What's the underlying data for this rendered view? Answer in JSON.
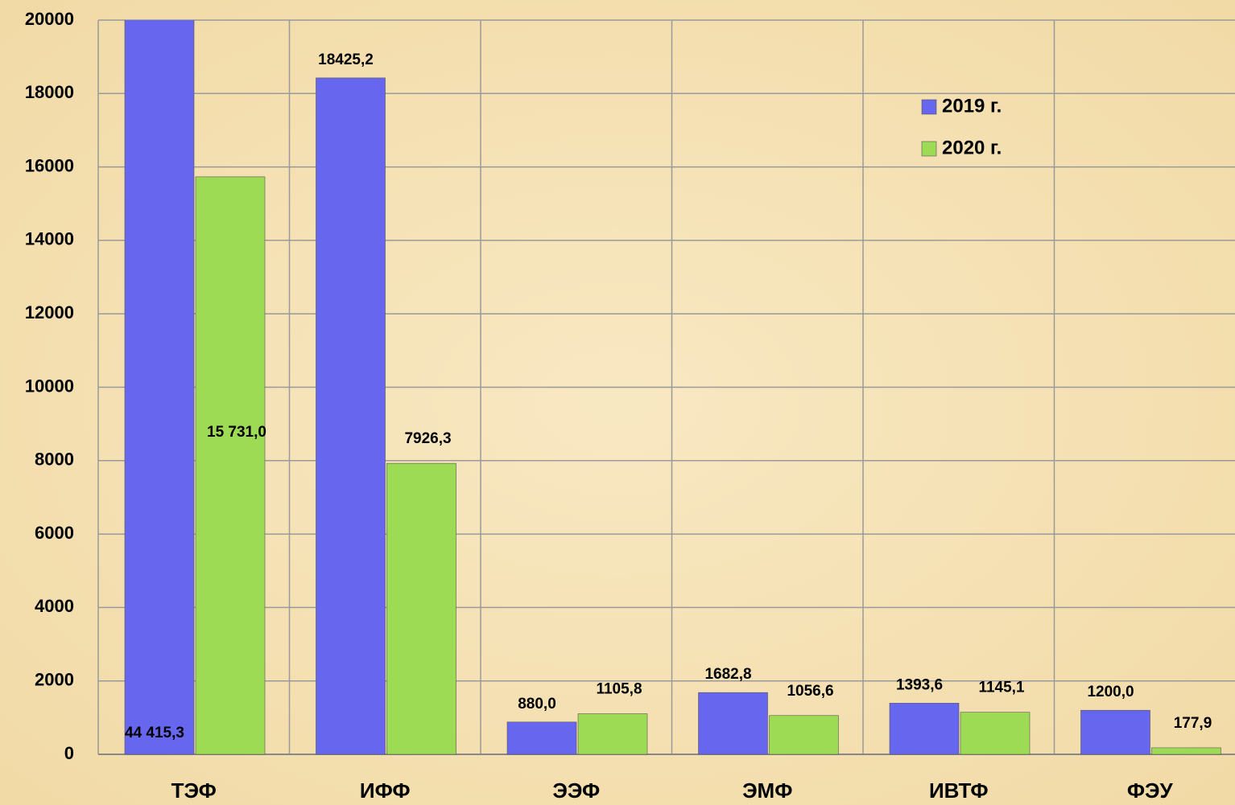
{
  "chart_data": {
    "type": "bar",
    "categories": [
      "ТЭФ",
      "ИФФ",
      "ЭЭФ",
      "ЭМФ",
      "ИВТФ",
      "ФЭУ"
    ],
    "series": [
      {
        "name": "2019 г.",
        "color": "#6666ee",
        "values": [
          44415.3,
          18425.2,
          880.0,
          1682.8,
          1393.6,
          1200.0
        ],
        "value_labels": [
          "44 415,3",
          "18425,2",
          "880,0",
          "1682,8",
          "1393,6",
          "1200,0"
        ]
      },
      {
        "name": "2020 г.",
        "color": "#9ddb55",
        "values": [
          15731.0,
          7926.3,
          1105.8,
          1056.6,
          1145.1,
          177.9
        ],
        "value_labels": [
          "15 731,0",
          "7926,3",
          "1105,8",
          "1056,6",
          "1145,1",
          "177,9"
        ]
      }
    ],
    "ylim": [
      0,
      20000
    ],
    "yticks": [
      0,
      2000,
      4000,
      6000,
      8000,
      10000,
      12000,
      14000,
      16000,
      18000,
      20000
    ],
    "grid": true,
    "legend": "upper right"
  }
}
